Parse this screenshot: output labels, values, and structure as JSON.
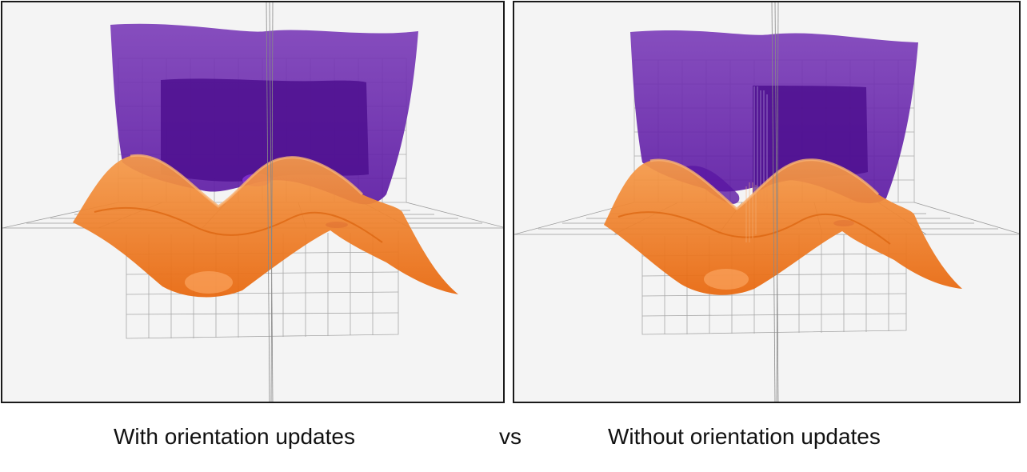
{
  "captions": {
    "left": "With orientation updates",
    "vs": "vs",
    "right": "Without orientation updates"
  },
  "colors": {
    "background": "#f4f4f4",
    "purple_surface": "#6a1fb0",
    "purple_inner": "#4d0f8f",
    "orange_surface": "#f07a1a",
    "grid": "#9a9a9a",
    "border": "#1a1a1a"
  }
}
